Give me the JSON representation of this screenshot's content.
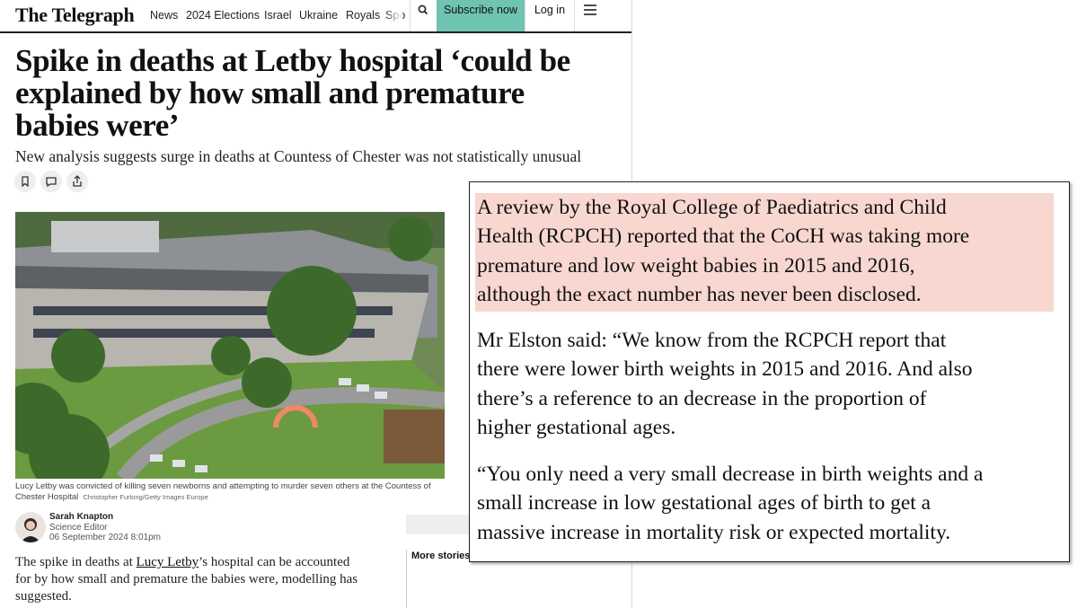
{
  "header": {
    "logo": "The Telegraph",
    "nav": [
      "News",
      "2024 Elections",
      "Israel",
      "Ukraine",
      "Royals",
      "Spo"
    ],
    "subscribe": "Subscribe now",
    "login": "Log in"
  },
  "article": {
    "headline": [
      "Spike in deaths at Letby hospital ‘could be",
      "explained by how small and premature",
      "babies were’"
    ],
    "subtitle": "New analysis suggests surge in deaths at Countess of Chester was not statistically unusual",
    "caption": "Lucy Letby was convicted of killing seven newborns and attempting to murder seven others at the Countess of Chester Hospital",
    "credit": "Christopher Furlong/Getty Images Europe",
    "author": {
      "name": "Sarah Knapton",
      "role": "Science Editor",
      "date": "06 September 2024 8:01pm"
    },
    "body": {
      "before": "The spike in deaths at ",
      "link": "Lucy Letby",
      "after": "’s hospital can be accounted for by how small and premature the babies were, modelling has suggested."
    },
    "more_stories": "More stories"
  },
  "quote": {
    "paragraphs": [
      [
        "A review by the Royal College of Paediatrics and Child",
        "Health (RCPCH) reported that the CoCH was taking more",
        "premature and low weight babies in 2015 and 2016,",
        "although the exact number has never been disclosed."
      ],
      [
        "Mr Elston said: “We know from the RCPCH report that",
        "there were lower birth weights in 2015 and 2016. And also",
        "there’s a reference to an decrease in the proportion of",
        "higher gestational ages."
      ],
      [
        "“You only need a very small decrease in birth weights and a",
        "small increase in low gestational ages of birth to get a",
        "massive increase in mortality risk or expected mortality."
      ]
    ]
  }
}
